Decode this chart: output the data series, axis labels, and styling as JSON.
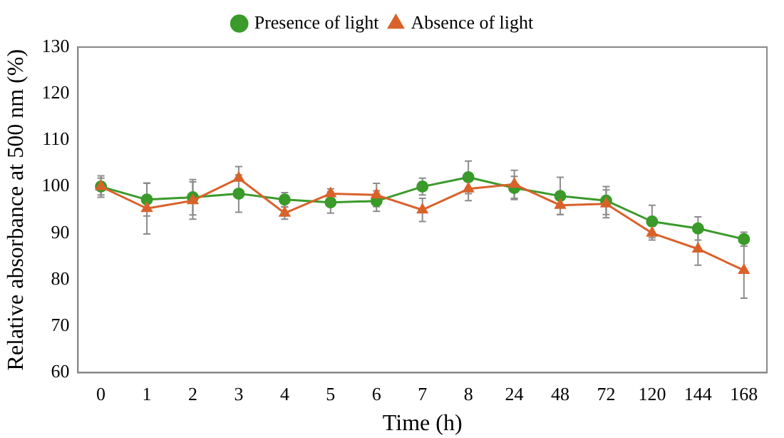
{
  "chart_data": {
    "type": "line",
    "xlabel": "Time (h)",
    "ylabel": "Relative absorbance at 500 nm (%)",
    "categories": [
      "0",
      "1",
      "2",
      "3",
      "4",
      "5",
      "6",
      "7",
      "8",
      "24",
      "48",
      "72",
      "120",
      "144",
      "168"
    ],
    "series": [
      {
        "name": "Presence of light",
        "color": "#3a9a2a",
        "marker": "circle",
        "values": [
          100,
          97.2,
          97.7,
          98.5,
          97.2,
          96.6,
          96.9,
          100,
          102,
          99.7,
          98,
          97,
          92.5,
          91,
          88.7
        ],
        "errors": [
          2.3,
          3.5,
          3.8,
          4,
          1.5,
          2.3,
          2.2,
          1.8,
          3.5,
          2.5,
          4,
          3,
          3.5,
          2.5,
          1.5
        ]
      },
      {
        "name": "Absence of light",
        "color": "#d9622b",
        "marker": "triangle",
        "values": [
          100,
          95.3,
          97,
          101.8,
          94.3,
          98.5,
          98.2,
          95,
          99.5,
          100.5,
          96,
          96.3,
          90,
          86.6,
          82
        ],
        "errors": [
          1.8,
          5.5,
          4,
          2.5,
          1.3,
          1,
          2.5,
          2.5,
          2.5,
          3,
          2,
          3,
          1.5,
          3.5,
          6
        ]
      }
    ],
    "ylim": [
      60,
      130
    ],
    "yticks": [
      60,
      70,
      80,
      90,
      100,
      110,
      120,
      130
    ],
    "grid": false,
    "legend": "top",
    "line_style": "solid"
  }
}
